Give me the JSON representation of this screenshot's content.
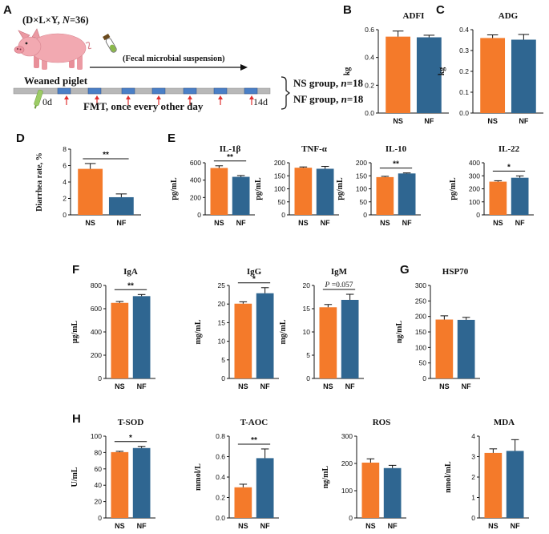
{
  "panel_letters": [
    "A",
    "B",
    "C",
    "D",
    "E",
    "F",
    "G",
    "H"
  ],
  "colors": {
    "ns": "#f47a2a",
    "nf": "#2f6691",
    "arrow": "#e03030",
    "timeline": "#b8b8b8",
    "block": "#4a7fc6"
  },
  "design": {
    "animals": "(D×L×Y, ",
    "n_label": "N",
    "n_value": "=36)",
    "piglet_label": "Weaned piglet",
    "suspension_label": "(Fecal microbial suspension)",
    "day_start": "0d",
    "day_end": "14d",
    "fmt_label": "FMT, once every other day",
    "groups": [
      {
        "prefix": "NS group, ",
        "n": "n",
        "value": "=18"
      },
      {
        "prefix": "NF group, ",
        "n": "n",
        "value": "=18"
      }
    ]
  },
  "chart_data": [
    {
      "id": "adfi",
      "type": "bar",
      "title": "ADFI",
      "ylabel": "kg",
      "categories": [
        "NS",
        "NF"
      ],
      "values": [
        0.55,
        0.545
      ],
      "errors": [
        0.04,
        0.015
      ],
      "ylim": [
        0,
        0.6
      ],
      "yticks": [
        "0.0",
        "0.2",
        "0.4",
        "0.6"
      ],
      "sig": ""
    },
    {
      "id": "adg",
      "type": "bar",
      "title": "ADG",
      "ylabel": "kg",
      "categories": [
        "NS",
        "NF"
      ],
      "values": [
        0.36,
        0.352
      ],
      "errors": [
        0.015,
        0.025
      ],
      "ylim": [
        0,
        0.4
      ],
      "yticks": [
        "0.0",
        "0.1",
        "0.2",
        "0.3",
        "0.4"
      ],
      "sig": ""
    },
    {
      "id": "diarrhea",
      "type": "bar",
      "title": "",
      "ylabel": "Diarrhea rate, %",
      "categories": [
        "NS",
        "NF"
      ],
      "values": [
        5.6,
        2.15
      ],
      "errors": [
        0.65,
        0.4
      ],
      "ylim": [
        0,
        8
      ],
      "yticks": [
        "0",
        "2",
        "4",
        "6",
        "8"
      ],
      "sig": "**"
    },
    {
      "id": "il1b",
      "type": "bar",
      "title": "IL-1β",
      "ylabel": "pg/mL",
      "categories": [
        "NS",
        "NF"
      ],
      "values": [
        540,
        438
      ],
      "errors": [
        25,
        15
      ],
      "ylim": [
        0,
        600
      ],
      "yticks": [
        "0",
        "200",
        "400",
        "600"
      ],
      "sig": "**"
    },
    {
      "id": "tnfa",
      "type": "bar",
      "title": "TNF-α",
      "ylabel": "pg/mL",
      "categories": [
        "NS",
        "NF"
      ],
      "values": [
        181,
        177
      ],
      "errors": [
        3,
        9
      ],
      "ylim": [
        0,
        200
      ],
      "yticks": [
        "0",
        "50",
        "100",
        "150",
        "200"
      ],
      "sig": ""
    },
    {
      "id": "il10",
      "type": "bar",
      "title": "IL-10",
      "ylabel": "pg/mL",
      "categories": [
        "NS",
        "NF"
      ],
      "values": [
        145,
        159
      ],
      "errors": [
        3,
        2
      ],
      "ylim": [
        0,
        200
      ],
      "yticks": [
        "0",
        "50",
        "100",
        "150",
        "200"
      ],
      "sig": "**"
    },
    {
      "id": "il22",
      "type": "bar",
      "title": "IL-22",
      "ylabel": "pg/mL",
      "categories": [
        "NS",
        "NF"
      ],
      "values": [
        255,
        285
      ],
      "errors": [
        7,
        14
      ],
      "ylim": [
        0,
        400
      ],
      "yticks": [
        "0",
        "100",
        "200",
        "300",
        "400"
      ],
      "sig": "*"
    },
    {
      "id": "iga",
      "type": "bar",
      "title": "IgA",
      "ylabel": "μg/mL",
      "categories": [
        "NS",
        "NF"
      ],
      "values": [
        650,
        708
      ],
      "errors": [
        12,
        14
      ],
      "ylim": [
        0,
        800
      ],
      "yticks": [
        "0",
        "200",
        "400",
        "600",
        "800"
      ],
      "sig": "**"
    },
    {
      "id": "igg",
      "type": "bar",
      "title": "IgG",
      "ylabel": "mg/mL",
      "categories": [
        "NS",
        "NF"
      ],
      "values": [
        20.1,
        22.9
      ],
      "errors": [
        0.5,
        1.5
      ],
      "ylim": [
        0,
        25
      ],
      "yticks": [
        "0",
        "5",
        "10",
        "15",
        "20",
        "25"
      ],
      "sig": "*"
    },
    {
      "id": "igm",
      "type": "bar",
      "title": "IgM",
      "ylabel": "mg/mL",
      "categories": [
        "NS",
        "NF"
      ],
      "values": [
        15.3,
        16.9
      ],
      "errors": [
        0.6,
        1.2
      ],
      "ylim": [
        0,
        20
      ],
      "yticks": [
        "0",
        "5",
        "10",
        "15",
        "20"
      ],
      "sig": "",
      "p_label": "P",
      "p_value": " =0.057"
    },
    {
      "id": "hsp70",
      "type": "bar",
      "title": "HSP70",
      "ylabel": "ng/mL",
      "categories": [
        "NS",
        "NF"
      ],
      "values": [
        190,
        189
      ],
      "errors": [
        12,
        8
      ],
      "ylim": [
        0,
        300
      ],
      "yticks": [
        "0",
        "50",
        "100",
        "150",
        "200",
        "250",
        "300"
      ],
      "sig": ""
    },
    {
      "id": "tsod",
      "type": "bar",
      "title": "T-SOD",
      "ylabel": "U/mL",
      "categories": [
        "NS",
        "NF"
      ],
      "values": [
        80.5,
        85.5
      ],
      "errors": [
        1,
        2
      ],
      "ylim": [
        0,
        100
      ],
      "yticks": [
        "0",
        "20",
        "40",
        "60",
        "80",
        "100"
      ],
      "sig": "*"
    },
    {
      "id": "taoc",
      "type": "bar",
      "title": "T-AOC",
      "ylabel": "mmol/L",
      "categories": [
        "NS",
        "NF"
      ],
      "values": [
        0.3,
        0.585
      ],
      "errors": [
        0.03,
        0.09
      ],
      "ylim": [
        0,
        0.8
      ],
      "yticks": [
        "0.0",
        "0.2",
        "0.4",
        "0.6",
        "0.8"
      ],
      "sig": "**"
    },
    {
      "id": "ros",
      "type": "bar",
      "title": "ROS",
      "ylabel": "ng/mL",
      "categories": [
        "NS",
        "NF"
      ],
      "values": [
        203,
        183
      ],
      "errors": [
        14,
        10
      ],
      "ylim": [
        0,
        300
      ],
      "yticks": [
        "0",
        "100",
        "200",
        "300"
      ],
      "sig": ""
    },
    {
      "id": "mda",
      "type": "bar",
      "title": "MDA",
      "ylabel": "nmol/mL",
      "categories": [
        "NS",
        "NF"
      ],
      "values": [
        3.18,
        3.28
      ],
      "errors": [
        0.2,
        0.55
      ],
      "ylim": [
        0,
        4
      ],
      "yticks": [
        "0",
        "1",
        "2",
        "3",
        "4"
      ],
      "sig": ""
    }
  ]
}
